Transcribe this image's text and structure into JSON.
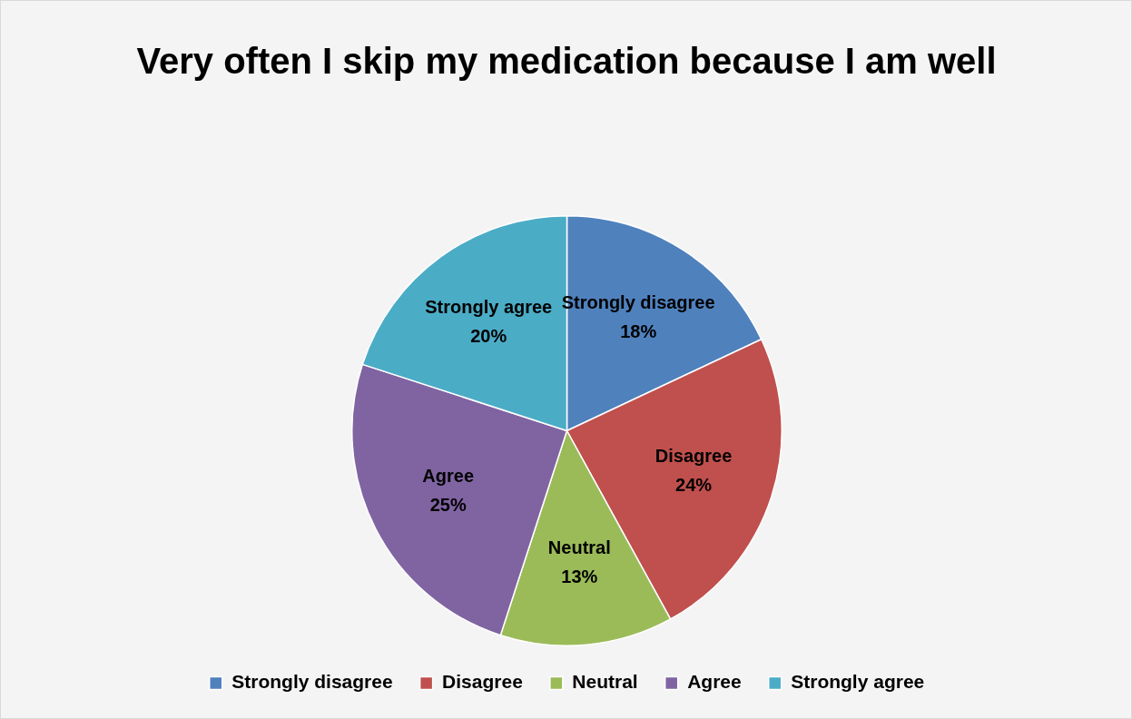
{
  "chart_data": {
    "type": "pie",
    "title": "Very often I skip my medication because I am well",
    "categories": [
      "Strongly disagree",
      "Disagree",
      "Neutral",
      "Agree",
      "Strongly agree"
    ],
    "values": [
      18,
      24,
      13,
      25,
      20
    ],
    "value_labels": [
      "18%",
      "24%",
      "13%",
      "25%",
      "20%"
    ],
    "colors": [
      "#4f81bd",
      "#c0504d",
      "#9bbb59",
      "#8064a2",
      "#4bacc6"
    ],
    "legend": "bottom"
  }
}
